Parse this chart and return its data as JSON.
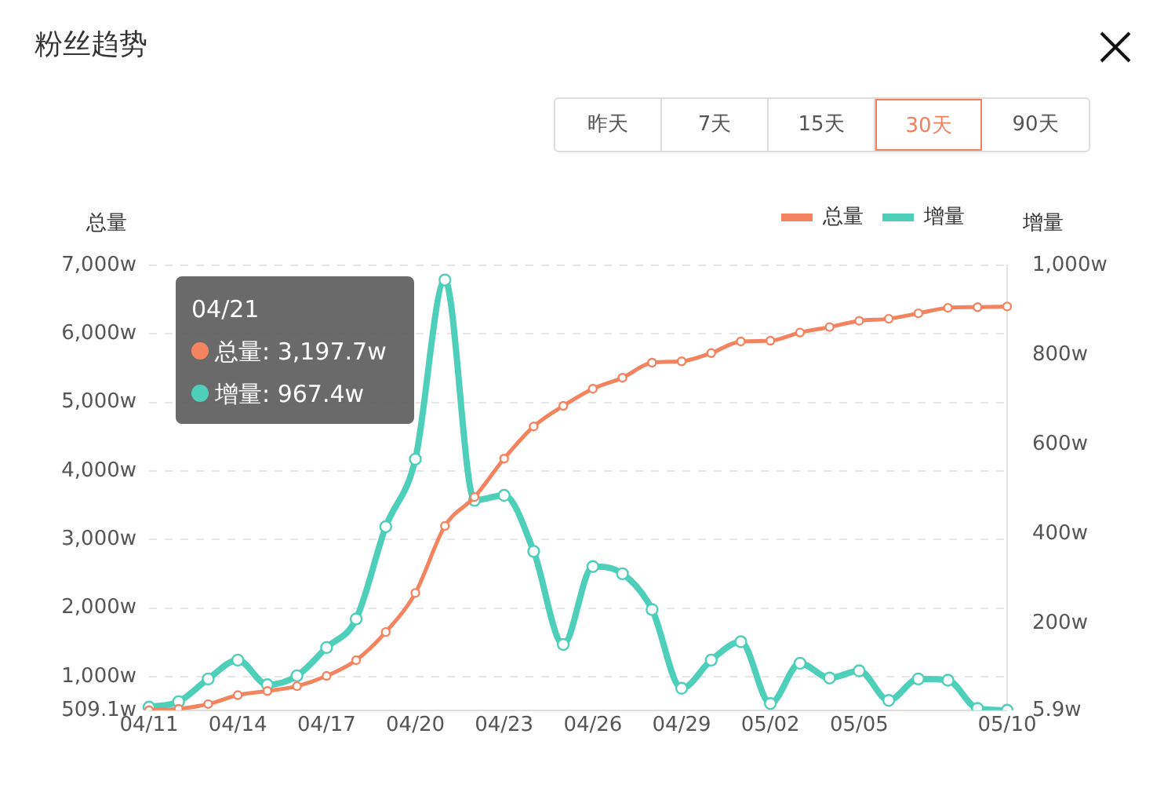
{
  "chart_data": {
    "type": "line",
    "title": "粉丝趋势",
    "ylabel": "总量",
    "y2label": "增量",
    "categories": [
      "04/11",
      null,
      null,
      "04/14",
      null,
      null,
      "04/17",
      null,
      null,
      "04/20",
      null,
      null,
      "04/23",
      null,
      null,
      "04/26",
      null,
      null,
      "04/29",
      null,
      null,
      "05/02",
      null,
      null,
      "05/05",
      null,
      null,
      null,
      null,
      "05/10"
    ],
    "series": [
      {
        "name": "总量",
        "color": "#f4845f",
        "values": [
          510,
          530,
          600,
          730,
          790,
          860,
          1010,
          1240,
          1650,
          2220,
          3197.7,
          3620,
          4180,
          4650,
          4950,
          5200,
          5360,
          5580,
          5600,
          5720,
          5890,
          5900,
          6020,
          6100,
          6190,
          6220,
          6300,
          6380,
          6390,
          6400
        ]
      },
      {
        "name": "增量",
        "color": "#4dcfb9",
        "axis": "y2",
        "values": [
          13,
          25,
          76,
          118,
          63,
          83,
          146,
          210,
          416,
          567,
          967.4,
          475,
          486,
          361,
          153,
          327,
          311,
          231,
          55,
          118,
          159,
          21,
          111,
          78,
          94,
          28,
          76,
          73,
          10,
          6
        ]
      }
    ],
    "ylim": [
      509.1,
      7000
    ],
    "yticks": [
      {
        "value": 509.1,
        "label": "509.1w"
      },
      {
        "value": 1000,
        "label": "1,000w"
      },
      {
        "value": 2000,
        "label": "2,000w"
      },
      {
        "value": 3000,
        "label": "3,000w"
      },
      {
        "value": 4000,
        "label": "4,000w"
      },
      {
        "value": 5000,
        "label": "5,000w"
      },
      {
        "value": 6000,
        "label": "6,000w"
      },
      {
        "value": 7000,
        "label": "7,000w"
      }
    ],
    "y2lim": [
      5.9,
      1000
    ],
    "y2ticks": [
      {
        "value": 5.9,
        "label": "5.9w"
      },
      {
        "value": 200,
        "label": "200w"
      },
      {
        "value": 400,
        "label": "400w"
      },
      {
        "value": 600,
        "label": "600w"
      },
      {
        "value": 800,
        "label": "800w"
      },
      {
        "value": 1000,
        "label": "1,000w"
      }
    ],
    "annotations": [
      "昨天",
      "7天",
      "15天",
      "30天",
      "90天",
      "04/21",
      "总量: 3,197.7w",
      "增量: 967.4w"
    ],
    "grid": "y",
    "legend": "top right",
    "marker": "circle",
    "line_style": "solid"
  }
}
